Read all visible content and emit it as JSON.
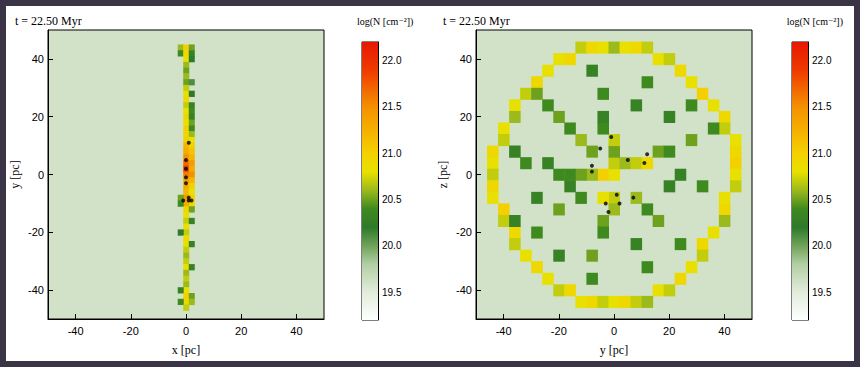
{
  "chart_data": [
    {
      "type": "heatmap",
      "title": "t = 22.50 Myr",
      "x_label": "x [pc]",
      "y_label": "y [pc]",
      "xlim": [
        -50,
        50
      ],
      "ylim": [
        -50,
        50
      ],
      "xticks": [
        -40,
        -20,
        0,
        20,
        40
      ],
      "yticks": [
        -40,
        -20,
        0,
        20,
        40
      ],
      "cell_size": 2,
      "background": 19.6,
      "cells": [
        [
          -2,
          44,
          20.6
        ],
        [
          0,
          44,
          21.0
        ],
        [
          2,
          44,
          20.5
        ],
        [
          -2,
          42,
          20.4
        ],
        [
          0,
          42,
          20.9
        ],
        [
          2,
          42,
          20.3
        ],
        [
          0,
          40,
          20.8
        ],
        [
          2,
          40,
          20.2
        ],
        [
          0,
          38,
          20.6
        ],
        [
          0,
          36,
          20.5
        ],
        [
          0,
          34,
          20.6
        ],
        [
          0,
          32,
          20.5
        ],
        [
          2,
          32,
          20.1
        ],
        [
          0,
          30,
          20.7
        ],
        [
          0,
          28,
          20.8
        ],
        [
          2,
          28,
          20.2
        ],
        [
          0,
          26,
          20.9
        ],
        [
          0,
          24,
          20.7
        ],
        [
          2,
          24,
          20.3
        ],
        [
          0,
          22,
          20.8
        ],
        [
          2,
          22,
          20.4
        ],
        [
          0,
          20,
          20.9
        ],
        [
          2,
          20,
          20.3
        ],
        [
          0,
          18,
          20.8
        ],
        [
          2,
          18,
          20.5
        ],
        [
          0,
          16,
          21.0
        ],
        [
          2,
          16,
          20.4
        ],
        [
          0,
          14,
          20.9
        ],
        [
          2,
          14,
          20.6
        ],
        [
          0,
          12,
          21.0
        ],
        [
          2,
          12,
          20.8
        ],
        [
          0,
          10,
          21.2
        ],
        [
          2,
          10,
          21.0
        ],
        [
          0,
          8,
          21.3
        ],
        [
          2,
          8,
          21.1
        ],
        [
          0,
          6,
          21.5
        ],
        [
          2,
          6,
          21.2
        ],
        [
          0,
          4,
          21.7
        ],
        [
          2,
          4,
          21.4
        ],
        [
          0,
          2,
          21.9
        ],
        [
          2,
          2,
          21.3
        ],
        [
          0,
          0,
          21.6
        ],
        [
          2,
          0,
          21.5
        ],
        [
          0,
          -2,
          21.4
        ],
        [
          2,
          -2,
          21.2
        ],
        [
          0,
          -4,
          21.3
        ],
        [
          2,
          -4,
          21.0
        ],
        [
          0,
          -6,
          21.2
        ],
        [
          2,
          -6,
          20.8
        ],
        [
          0,
          -8,
          21.4
        ],
        [
          2,
          -8,
          21.0
        ],
        [
          -2,
          -8,
          20.5
        ],
        [
          0,
          -10,
          21.3
        ],
        [
          2,
          -10,
          20.9
        ],
        [
          -2,
          -10,
          20.4
        ],
        [
          0,
          -12,
          20.9
        ],
        [
          2,
          -12,
          20.5
        ],
        [
          0,
          -14,
          20.8
        ],
        [
          0,
          -16,
          20.7
        ],
        [
          2,
          -16,
          20.3
        ],
        [
          0,
          -18,
          20.8
        ],
        [
          0,
          -20,
          20.7
        ],
        [
          -2,
          -20,
          20.2
        ],
        [
          0,
          -22,
          20.9
        ],
        [
          0,
          -24,
          20.8
        ],
        [
          2,
          -24,
          20.3
        ],
        [
          0,
          -26,
          20.7
        ],
        [
          0,
          -28,
          20.6
        ],
        [
          0,
          -30,
          20.7
        ],
        [
          0,
          -32,
          20.8
        ],
        [
          2,
          -32,
          20.3
        ],
        [
          0,
          -34,
          20.6
        ],
        [
          0,
          -36,
          20.7
        ],
        [
          0,
          -38,
          20.6
        ],
        [
          0,
          -40,
          20.8
        ],
        [
          -2,
          -40,
          20.3
        ],
        [
          0,
          -42,
          21.0
        ],
        [
          2,
          -42,
          20.5
        ],
        [
          0,
          -44,
          20.9
        ],
        [
          2,
          -44,
          20.6
        ],
        [
          -2,
          -44,
          20.4
        ],
        [
          0,
          -46,
          20.7
        ]
      ],
      "points": {
        "type": "scatter",
        "color": "#000000",
        "marker": "circle",
        "x": [
          1,
          0,
          0,
          0,
          0,
          1,
          -1,
          1,
          2
        ],
        "y": [
          11,
          5,
          2,
          -1,
          -3,
          -8,
          -9,
          -9,
          -9
        ]
      },
      "colorbar": {
        "label": "log(N [cm⁻²])",
        "range": [
          19.2,
          22.2
        ],
        "ticks": [
          19.5,
          {
            "value": 20,
            "label": "20.0"
          },
          20.5,
          {
            "value": 21,
            "label": "21.0"
          },
          21.5,
          {
            "value": 22,
            "label": "22.0"
          }
        ]
      }
    },
    {
      "type": "heatmap",
      "title": "t = 22.50 Myr",
      "x_label": "y [pc]",
      "y_label": "z [pc]",
      "xlim": [
        -50,
        50
      ],
      "ylim": [
        -50,
        50
      ],
      "xticks": [
        -40,
        -20,
        0,
        20,
        40
      ],
      "yticks": [
        -40,
        -20,
        0,
        20,
        40
      ],
      "cell_size": 4,
      "background": 19.6,
      "cells": [
        [
          -12,
          44,
          20.7
        ],
        [
          -8,
          44,
          20.9
        ],
        [
          -4,
          44,
          20.8
        ],
        [
          0,
          44,
          20.6
        ],
        [
          4,
          44,
          20.8
        ],
        [
          8,
          44,
          20.9
        ],
        [
          12,
          44,
          20.7
        ],
        [
          -20,
          40,
          20.8
        ],
        [
          -16,
          40,
          20.9
        ],
        [
          16,
          40,
          20.8
        ],
        [
          20,
          40,
          20.7
        ],
        [
          -24,
          36,
          20.8
        ],
        [
          24,
          36,
          20.9
        ],
        [
          -28,
          32,
          20.9
        ],
        [
          28,
          32,
          20.8
        ],
        [
          -32,
          28,
          20.7
        ],
        [
          32,
          28,
          21.0
        ],
        [
          -36,
          24,
          20.8
        ],
        [
          36,
          24,
          20.8
        ],
        [
          -36,
          20,
          20.6
        ],
        [
          40,
          20,
          20.9
        ],
        [
          -40,
          16,
          20.8
        ],
        [
          40,
          16,
          20.7
        ],
        [
          -40,
          12,
          20.7
        ],
        [
          44,
          12,
          20.8
        ],
        [
          -44,
          8,
          20.9
        ],
        [
          44,
          8,
          20.9
        ],
        [
          -44,
          4,
          20.8
        ],
        [
          44,
          4,
          21.0
        ],
        [
          -44,
          0,
          20.7
        ],
        [
          44,
          0,
          20.8
        ],
        [
          -44,
          -4,
          20.9
        ],
        [
          44,
          -4,
          20.7
        ],
        [
          -44,
          -8,
          20.8
        ],
        [
          40,
          -8,
          20.8
        ],
        [
          -40,
          -12,
          21.0
        ],
        [
          40,
          -12,
          20.9
        ],
        [
          -40,
          -16,
          20.7
        ],
        [
          40,
          -16,
          20.6
        ],
        [
          -36,
          -20,
          20.9
        ],
        [
          36,
          -20,
          20.8
        ],
        [
          -36,
          -24,
          20.7
        ],
        [
          32,
          -24,
          20.9
        ],
        [
          -32,
          -28,
          20.8
        ],
        [
          32,
          -28,
          20.7
        ],
        [
          -28,
          -32,
          20.9
        ],
        [
          28,
          -32,
          20.8
        ],
        [
          -24,
          -36,
          20.8
        ],
        [
          24,
          -36,
          20.9
        ],
        [
          -20,
          -40,
          20.7
        ],
        [
          -16,
          -40,
          20.9
        ],
        [
          16,
          -40,
          20.8
        ],
        [
          20,
          -40,
          20.7
        ],
        [
          -12,
          -44,
          20.8
        ],
        [
          -8,
          -44,
          20.9
        ],
        [
          -4,
          -44,
          20.7
        ],
        [
          0,
          -44,
          20.8
        ],
        [
          4,
          -44,
          20.9
        ],
        [
          8,
          -44,
          20.7
        ],
        [
          12,
          -44,
          20.6
        ],
        [
          -4,
          0,
          21.0
        ],
        [
          0,
          0,
          20.8
        ],
        [
          0,
          4,
          20.7
        ],
        [
          4,
          4,
          20.6
        ],
        [
          -8,
          0,
          20.6
        ],
        [
          -12,
          0,
          20.5
        ],
        [
          -16,
          0,
          20.4
        ],
        [
          -20,
          0,
          20.4
        ],
        [
          -16,
          -4,
          20.3
        ],
        [
          -24,
          4,
          20.3
        ],
        [
          -32,
          4,
          20.4
        ],
        [
          -36,
          8,
          20.3
        ],
        [
          -8,
          8,
          20.5
        ],
        [
          -12,
          12,
          20.6
        ],
        [
          -16,
          16,
          20.4
        ],
        [
          -20,
          20,
          20.5
        ],
        [
          -24,
          24,
          20.4
        ],
        [
          -28,
          28,
          20.5
        ],
        [
          0,
          8,
          20.5
        ],
        [
          0,
          12,
          20.7
        ],
        [
          -4,
          16,
          20.4
        ],
        [
          -4,
          20,
          20.3
        ],
        [
          -4,
          28,
          20.4
        ],
        [
          -8,
          36,
          20.3
        ],
        [
          8,
          24,
          20.3
        ],
        [
          12,
          32,
          20.4
        ],
        [
          8,
          4,
          20.7
        ],
        [
          12,
          4,
          20.9
        ],
        [
          16,
          8,
          20.5
        ],
        [
          20,
          8,
          20.4
        ],
        [
          28,
          12,
          20.5
        ],
        [
          36,
          16,
          20.4
        ],
        [
          20,
          20,
          20.3
        ],
        [
          28,
          24,
          20.4
        ],
        [
          24,
          0,
          20.3
        ],
        [
          32,
          -4,
          20.4
        ],
        [
          0,
          -8,
          20.7
        ],
        [
          -4,
          -8,
          20.8
        ],
        [
          0,
          -12,
          20.6
        ],
        [
          -4,
          -16,
          20.5
        ],
        [
          -4,
          -20,
          20.4
        ],
        [
          -8,
          -28,
          20.5
        ],
        [
          -8,
          -36,
          20.4
        ],
        [
          8,
          -8,
          20.6
        ],
        [
          12,
          -12,
          20.4
        ],
        [
          16,
          -16,
          20.5
        ],
        [
          24,
          -24,
          20.4
        ],
        [
          20,
          -4,
          20.3
        ],
        [
          8,
          -24,
          20.3
        ],
        [
          12,
          -32,
          20.4
        ],
        [
          -12,
          -8,
          20.4
        ],
        [
          -20,
          -12,
          20.5
        ],
        [
          -28,
          -20,
          20.4
        ],
        [
          -36,
          -16,
          20.3
        ],
        [
          -20,
          -28,
          20.3
        ],
        [
          -28,
          -8,
          20.3
        ]
      ],
      "points": {
        "type": "scatter",
        "color": "#000000",
        "marker": "circle",
        "x": [
          -8,
          -8,
          -5,
          -1,
          5,
          11,
          12,
          -3,
          1,
          2,
          7,
          -2
        ],
        "y": [
          3,
          1,
          9,
          13,
          5,
          4,
          7,
          -10,
          -7,
          -10,
          -8,
          -13
        ]
      },
      "colorbar": {
        "label": "log(N [cm⁻²])",
        "range": [
          19.2,
          22.2
        ],
        "ticks": [
          19.5,
          {
            "value": 20,
            "label": "20.0"
          },
          20.5,
          {
            "value": 21,
            "label": "21.0"
          },
          21.5,
          {
            "value": 22,
            "label": "22.0"
          }
        ]
      }
    }
  ]
}
